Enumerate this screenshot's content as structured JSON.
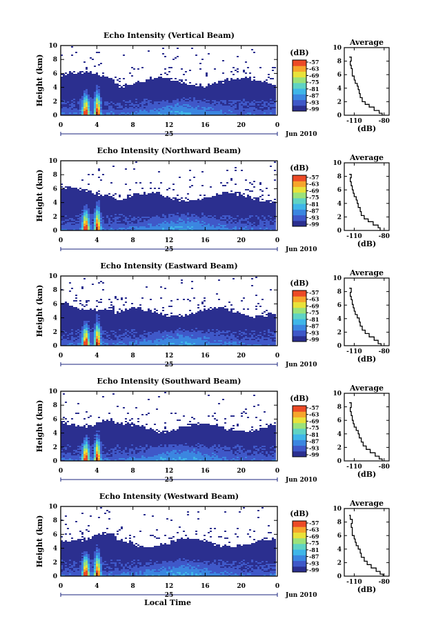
{
  "chart_data": [
    {
      "type": "heatmap",
      "title": "Echo Intensity (Vertical Beam)",
      "ylabel": "Height (km)",
      "xlim": [
        0,
        24
      ],
      "ylim": [
        0,
        10
      ],
      "xticks": [
        "0",
        "4",
        "8",
        "12",
        "16",
        "20",
        "0"
      ],
      "yticks": [
        "0",
        "2",
        "4",
        "6",
        "8",
        "10"
      ],
      "date_day": "25",
      "date_label": "Jun 2010",
      "colorbar": {
        "unit": "(dB)",
        "ticks": [
          "-57",
          "-63",
          "-69",
          "-75",
          "-81",
          "-87",
          "-93",
          "-99"
        ]
      },
      "average": {
        "title": "Average",
        "xlabel": "(dB)",
        "xticks": [
          "-110",
          "-80"
        ],
        "yticks": [
          "0",
          "2",
          "4",
          "6",
          "8",
          "10"
        ],
        "profile": [
          [
            -82,
            0.0
          ],
          [
            -85,
            0.3
          ],
          [
            -90,
            0.7
          ],
          [
            -95,
            1.2
          ],
          [
            -99,
            1.6
          ],
          [
            -102,
            2.0
          ],
          [
            -104,
            2.6
          ],
          [
            -105,
            3.2
          ],
          [
            -106,
            3.8
          ],
          [
            -107,
            4.3
          ],
          [
            -109,
            4.7
          ],
          [
            -110,
            5.2
          ],
          [
            -112,
            5.8
          ],
          [
            -112,
            6.3
          ],
          [
            -113,
            6.9
          ],
          [
            -114,
            7.4
          ],
          [
            -113,
            8.0
          ],
          [
            -115,
            8.6
          ]
        ]
      }
    },
    {
      "type": "heatmap",
      "title": "Echo Intensity (Northward Beam)",
      "ylabel": "Height (km)",
      "xlim": [
        0,
        24
      ],
      "ylim": [
        0,
        10
      ],
      "xticks": [
        "0",
        "4",
        "8",
        "12",
        "16",
        "20",
        "0"
      ],
      "yticks": [
        "0",
        "2",
        "4",
        "6",
        "8",
        "10"
      ],
      "date_day": "25",
      "date_label": "Jun 2010",
      "colorbar": {
        "unit": "(dB)",
        "ticks": [
          "-57",
          "-63",
          "-69",
          "-75",
          "-81",
          "-87",
          "-93",
          "-99"
        ]
      },
      "average": {
        "title": "Average",
        "xlabel": "(dB)",
        "xticks": [
          "-110",
          "-80"
        ],
        "yticks": [
          "0",
          "2",
          "4",
          "6",
          "8",
          "10"
        ],
        "profile": [
          [
            -84,
            0.0
          ],
          [
            -86,
            0.4
          ],
          [
            -91,
            0.8
          ],
          [
            -96,
            1.3
          ],
          [
            -100,
            1.7
          ],
          [
            -103,
            2.2
          ],
          [
            -104,
            2.8
          ],
          [
            -106,
            3.4
          ],
          [
            -107,
            4.0
          ],
          [
            -108,
            4.5
          ],
          [
            -110,
            5.0
          ],
          [
            -111,
            5.5
          ],
          [
            -112,
            6.0
          ],
          [
            -113,
            6.6
          ],
          [
            -114,
            7.2
          ],
          [
            -113,
            7.8
          ],
          [
            -115,
            8.3
          ]
        ]
      }
    },
    {
      "type": "heatmap",
      "title": "Echo Intensity (Eastward Beam)",
      "ylabel": "Height (km)",
      "xlim": [
        0,
        24
      ],
      "ylim": [
        0,
        10
      ],
      "xticks": [
        "0",
        "4",
        "8",
        "12",
        "16",
        "20",
        "0"
      ],
      "yticks": [
        "0",
        "2",
        "4",
        "6",
        "8",
        "10"
      ],
      "date_day": "25",
      "date_label": "Jun 2010",
      "colorbar": {
        "unit": "(dB)",
        "ticks": [
          "-57",
          "-63",
          "-69",
          "-75",
          "-81",
          "-87",
          "-93",
          "-99"
        ]
      },
      "average": {
        "title": "Average",
        "xlabel": "(dB)",
        "xticks": [
          "-110",
          "-80"
        ],
        "yticks": [
          "0",
          "2",
          "4",
          "6",
          "8",
          "10"
        ],
        "profile": [
          [
            -83,
            0.0
          ],
          [
            -86,
            0.3
          ],
          [
            -90,
            0.8
          ],
          [
            -95,
            1.3
          ],
          [
            -99,
            1.8
          ],
          [
            -102,
            2.3
          ],
          [
            -104,
            2.9
          ],
          [
            -105,
            3.5
          ],
          [
            -107,
            4.1
          ],
          [
            -109,
            4.6
          ],
          [
            -110,
            5.1
          ],
          [
            -111,
            5.6
          ],
          [
            -112,
            6.1
          ],
          [
            -113,
            6.8
          ],
          [
            -114,
            7.3
          ],
          [
            -113,
            7.9
          ],
          [
            -115,
            8.5
          ]
        ]
      }
    },
    {
      "type": "heatmap",
      "title": "Echo Intensity (Southward Beam)",
      "ylabel": "Height (km)",
      "xlim": [
        0,
        24
      ],
      "ylim": [
        0,
        10
      ],
      "xticks": [
        "0",
        "4",
        "8",
        "12",
        "16",
        "20",
        "0"
      ],
      "yticks": [
        "0",
        "2",
        "4",
        "6",
        "8",
        "10"
      ],
      "date_day": "25",
      "date_label": "Jun 2010",
      "colorbar": {
        "unit": "(dB)",
        "ticks": [
          "-57",
          "-63",
          "-69",
          "-75",
          "-81",
          "-87",
          "-93",
          "-99"
        ]
      },
      "average": {
        "title": "Average",
        "xlabel": "(dB)",
        "xticks": [
          "-110",
          "-80"
        ],
        "yticks": [
          "0",
          "2",
          "4",
          "6",
          "8",
          "10"
        ],
        "profile": [
          [
            -82,
            0.0
          ],
          [
            -85,
            0.3
          ],
          [
            -89,
            0.7
          ],
          [
            -94,
            1.2
          ],
          [
            -98,
            1.7
          ],
          [
            -101,
            2.2
          ],
          [
            -103,
            2.8
          ],
          [
            -105,
            3.4
          ],
          [
            -106,
            4.0
          ],
          [
            -108,
            4.5
          ],
          [
            -110,
            5.0
          ],
          [
            -111,
            5.5
          ],
          [
            -112,
            6.0
          ],
          [
            -113,
            6.7
          ],
          [
            -114,
            7.3
          ],
          [
            -113,
            7.9
          ],
          [
            -115,
            8.6
          ]
        ]
      }
    },
    {
      "type": "heatmap",
      "title": "Echo Intensity (Westward Beam)",
      "ylabel": "Height (km)",
      "xlabel": "Local Time",
      "xlim": [
        0,
        24
      ],
      "ylim": [
        0,
        10
      ],
      "xticks": [
        "0",
        "4",
        "8",
        "12",
        "16",
        "20",
        "0"
      ],
      "yticks": [
        "0",
        "2",
        "4",
        "6",
        "8",
        "10"
      ],
      "date_day": "25",
      "date_label": "Jun 2010",
      "colorbar": {
        "unit": "(dB)",
        "ticks": [
          "-57",
          "-63",
          "-69",
          "-75",
          "-81",
          "-87",
          "-93",
          "-99"
        ]
      },
      "average": {
        "title": "Average",
        "xlabel": "(dB)",
        "xticks": [
          "-110",
          "-80"
        ],
        "yticks": [
          "0",
          "2",
          "4",
          "6",
          "8",
          "10"
        ],
        "profile": [
          [
            -81,
            0.0
          ],
          [
            -84,
            0.3
          ],
          [
            -88,
            0.7
          ],
          [
            -93,
            1.2
          ],
          [
            -97,
            1.7
          ],
          [
            -100,
            2.2
          ],
          [
            -103,
            2.8
          ],
          [
            -104,
            3.4
          ],
          [
            -106,
            4.0
          ],
          [
            -108,
            4.5
          ],
          [
            -109,
            5.0
          ],
          [
            -110,
            5.5
          ],
          [
            -112,
            6.0
          ],
          [
            -112,
            6.6
          ],
          [
            -113,
            7.2
          ],
          [
            -112,
            7.8
          ],
          [
            -114,
            8.4
          ],
          [
            -115,
            9.0
          ]
        ]
      }
    }
  ],
  "colormap": [
    "#2b2f8f",
    "#3f58c8",
    "#3b86e0",
    "#3fb6e8",
    "#5fd3c4",
    "#9be27a",
    "#e8e23a",
    "#f6a52c",
    "#ec4a26"
  ]
}
